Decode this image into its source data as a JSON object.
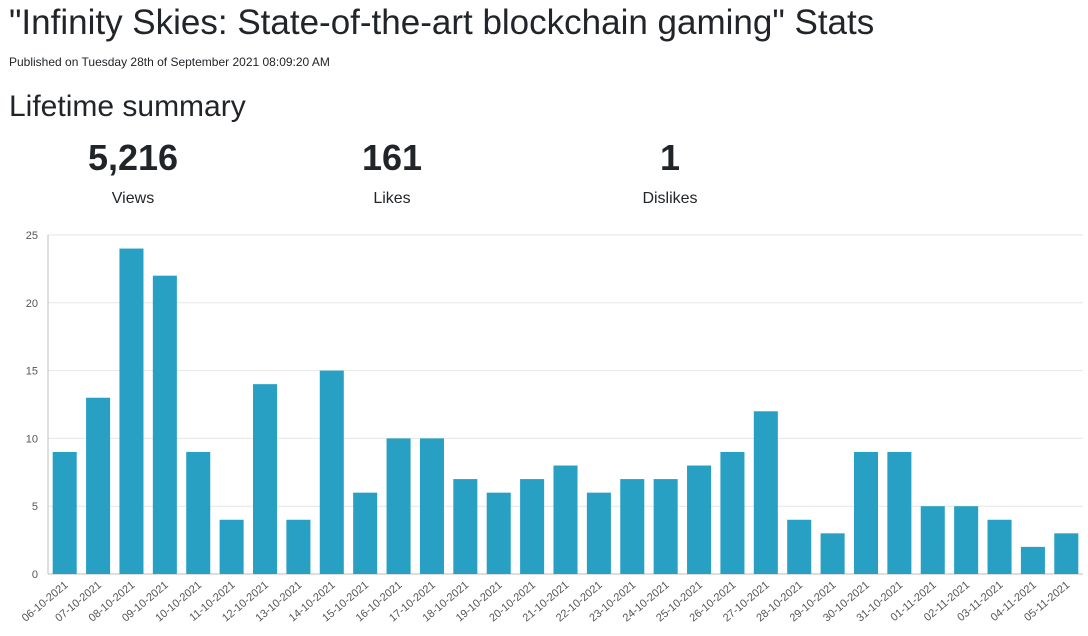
{
  "page": {
    "title": "\"Infinity Skies: State-of-the-art blockchain gaming\" Stats",
    "published": "Published on Tuesday 28th of September 2021 08:09:20 AM",
    "section_title": "Lifetime summary"
  },
  "stats": {
    "views": {
      "value": "5,216",
      "label": "Views"
    },
    "likes": {
      "value": "161",
      "label": "Likes"
    },
    "dislikes": {
      "value": "1",
      "label": "Dislikes"
    }
  },
  "colors": {
    "bar": "#27a0c4",
    "grid": "#e6e6e6",
    "axis": "#bdbdbd",
    "text": "#555555"
  },
  "chart_data": {
    "type": "bar",
    "title": "",
    "xlabel": "",
    "ylabel": "",
    "ylim": [
      0,
      25
    ],
    "yticks": [
      0,
      5,
      10,
      15,
      20,
      25
    ],
    "grid": true,
    "categories": [
      "06-10-2021",
      "07-10-2021",
      "08-10-2021",
      "09-10-2021",
      "10-10-2021",
      "11-10-2021",
      "12-10-2021",
      "13-10-2021",
      "14-10-2021",
      "15-10-2021",
      "16-10-2021",
      "17-10-2021",
      "18-10-2021",
      "19-10-2021",
      "20-10-2021",
      "21-10-2021",
      "22-10-2021",
      "23-10-2021",
      "24-10-2021",
      "25-10-2021",
      "26-10-2021",
      "27-10-2021",
      "28-10-2021",
      "29-10-2021",
      "30-10-2021",
      "31-10-2021",
      "01-11-2021",
      "02-11-2021",
      "03-11-2021",
      "04-11-2021",
      "05-11-2021"
    ],
    "values": [
      9,
      13,
      24,
      22,
      9,
      4,
      14,
      4,
      15,
      6,
      10,
      10,
      7,
      6,
      7,
      8,
      6,
      7,
      7,
      8,
      9,
      12,
      4,
      3,
      9,
      9,
      5,
      5,
      4,
      2,
      3
    ]
  }
}
